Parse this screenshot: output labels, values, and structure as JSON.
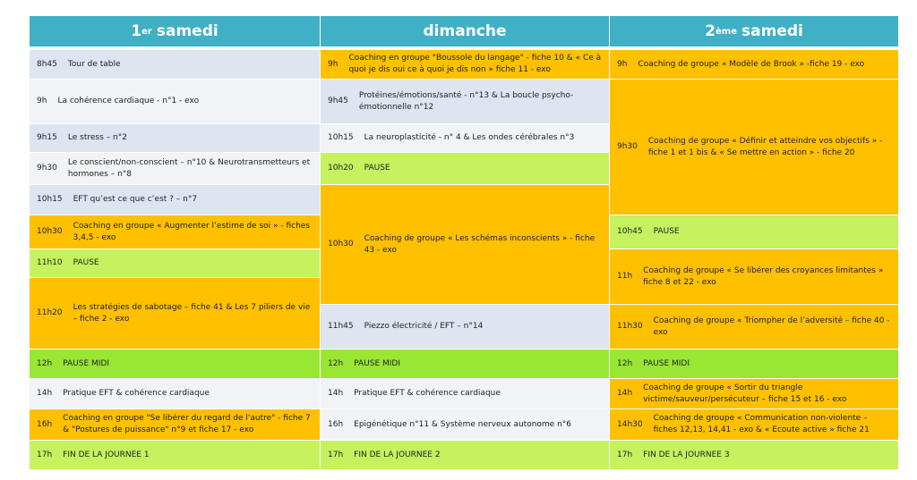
{
  "columns": [
    {
      "title": {
        "main": "1",
        "sup": "er",
        "rest": "samedi"
      },
      "rows": [
        {
          "time": "8h45",
          "text": "Tour de table"
        },
        {
          "time": "9h",
          "text": "La cohérence cardiaque - n°1 - exo"
        },
        {
          "time": "9h15",
          "text": "Le stress – n°2"
        },
        {
          "time": "9h30",
          "text": "Le conscient/non-conscient – n°10 & Neurotransmetteurs et hormones – n°8"
        },
        {
          "time": "10h15",
          "text": "EFT qu’est ce que c’est ? – n°7"
        },
        {
          "time": "10h30",
          "text": "Coaching en groupe « Augmenter l’estime de soi » - fiches 3,4,5 - exo"
        },
        {
          "time": "11h10",
          "text": "PAUSE"
        },
        {
          "time": "11h20",
          "text": "Les stratégies de sabotage – fiche 41 & Les 7 piliers de vie – fiche 2 - exo"
        },
        {
          "time": "12h",
          "text": "PAUSE MIDI"
        },
        {
          "time": "14h",
          "text": "Pratique EFT & cohérence cardiaque"
        },
        {
          "time": "16h",
          "text": "Coaching en groupe  \"Se libérer du regard de l'autre\" - fiche 7 & \"Postures de puissance\" n°9 et fiche 17 - exo"
        },
        {
          "time": "17h",
          "text": "FIN DE LA JOURNEE 1"
        }
      ]
    },
    {
      "title": {
        "main": "dimanche"
      },
      "rows": [
        {
          "time": "9h",
          "text": "Coaching en groupe \"Boussole du langage\" - fiche 10 &  « Ce à quoi je dis oui ce à quoi je dis non » fiche 11 - exo"
        },
        {
          "time": "9h45",
          "text": "Protéines/émotions/santé - n°13 & La boucle psycho-émotionnelle n°12"
        },
        {
          "time": "10h15",
          "text": "La neuroplasticité - n° 4 & Les ondes cérébrales n°3"
        },
        {
          "time": "10h20",
          "text": "PAUSE"
        },
        {
          "time": "10h30",
          "text": "Coaching de groupe « Les schémas inconscients » - fiche 43 - exo"
        },
        {
          "time": "11h45",
          "text": "Piezzo électricité / EFT – n°14"
        },
        {
          "time": "12h",
          "text": "PAUSE MIDI"
        },
        {
          "time": "14h",
          "text": "Pratique EFT & cohérence cardiaque"
        },
        {
          "time": "16h",
          "text": "Epigénétique n°11 & Système nerveux autonome n°6"
        },
        {
          "time": "17h",
          "text": "FIN DE LA JOURNEE 2"
        }
      ]
    },
    {
      "title": {
        "main": "2",
        "sup": "ème",
        "rest": "samedi"
      },
      "rows": [
        {
          "time": "9h",
          "text": "Coaching de groupe « Modèle de Brook » -fiche 19 - exo"
        },
        {
          "time": "9h30",
          "text": "Coaching de groupe « Définir et atteindre vos objectifs » - fiche 1 et 1 bis & « Se mettre en action » - fiche 20"
        },
        {
          "time": "10h45",
          "text": "PAUSE"
        },
        {
          "time": "11h",
          "text": "Coaching de groupe « Se libérer des croyances limitantes » fiche 8 et 22 - exo"
        },
        {
          "time": "11h30",
          "text": "Coaching de groupe « Triompher de l’adversité – fiche 40 - exo"
        },
        {
          "time": "12h",
          "text": "PAUSE MIDI"
        },
        {
          "time": "14h",
          "text": "Coaching de groupe « Sortir du triangle victime/sauveur/persécuteur – fiche 15 et 16 - exo"
        },
        {
          "time": "14h30",
          "text": "Coaching de groupe « Communication non-violente – fiches 12,13, 14,41 - exo & « Ecoute active » fiche 21"
        },
        {
          "time": "17h",
          "text": "FIN DE LA JOURNEE 3"
        }
      ]
    }
  ]
}
